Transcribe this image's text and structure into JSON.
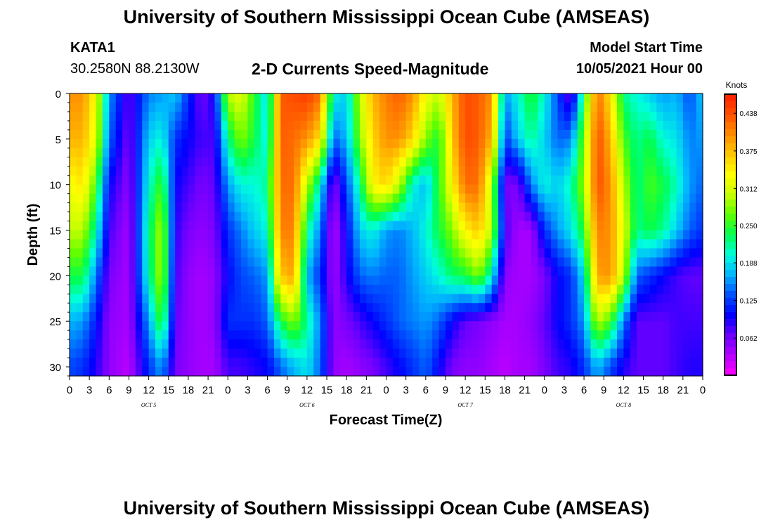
{
  "header": {
    "title": "University of Southern Mississippi Ocean Cube (AMSEAS)",
    "station_id": "KATA1",
    "station_coords": "30.2580N  88.2130W",
    "model_label": "Model Start Time",
    "model_start": "10/05/2021 Hour 00"
  },
  "footer": {
    "title": "University of Southern Mississippi Ocean Cube (AMSEAS)"
  },
  "colors": {
    "palette": [
      "#ff00ff",
      "#b300ff",
      "#6a00ff",
      "#0000ff",
      "#0050ff",
      "#00b4ff",
      "#00ffdc",
      "#00ff50",
      "#5fff00",
      "#c8ff00",
      "#ffff00",
      "#ffc800",
      "#ff8c00",
      "#ff5000",
      "#ff1e00"
    ]
  },
  "chart_data": {
    "type": "heatmap",
    "title": "2-D Currents Speed-Magnitude",
    "xlabel": "Forecast Time(Z)",
    "ylabel": "Depth (ft)",
    "units": "Knots",
    "ylim": [
      0,
      31
    ],
    "yticks": [
      0,
      5,
      10,
      15,
      20,
      25,
      30
    ],
    "xlim_hours": [
      0,
      96
    ],
    "xtick_labels": [
      "0",
      "3",
      "6",
      "9",
      "12",
      "15",
      "18",
      "21",
      "0",
      "3",
      "6",
      "9",
      "12",
      "15",
      "18",
      "21",
      "0",
      "3",
      "6",
      "9",
      "12",
      "15",
      "18",
      "21",
      "0",
      "3",
      "6",
      "9",
      "12",
      "15",
      "18",
      "21",
      "0"
    ],
    "day_labels": [
      {
        "label": "OCT 5",
        "hour": 12
      },
      {
        "label": "OCT 6",
        "hour": 36
      },
      {
        "label": "OCT 7",
        "hour": 60
      },
      {
        "label": "OCT 8",
        "hour": 84
      }
    ],
    "colorbar_ticks": [
      "0.438",
      "0.375",
      "0.312",
      "0.250",
      "0.188",
      "0.125",
      "0.062"
    ],
    "colorbar_range": [
      0,
      0.47
    ],
    "time_hours": [
      0,
      2,
      4,
      6,
      9,
      12,
      14,
      16,
      18,
      20,
      22,
      24,
      26,
      28,
      30,
      32,
      34,
      36,
      38,
      40,
      42,
      44,
      46,
      48,
      50,
      52,
      54,
      56,
      58,
      60,
      62,
      64,
      66,
      68,
      70,
      72,
      74,
      76,
      78,
      80,
      82,
      84,
      86,
      88,
      90,
      92,
      94,
      96
    ],
    "depth_ft": [
      0,
      5,
      10,
      15,
      20,
      25,
      30
    ],
    "speed_knots": [
      [
        0.4,
        0.4,
        0.33,
        0.16,
        0.07,
        0.15,
        0.16,
        0.18,
        0.12,
        0.06,
        0.1,
        0.3,
        0.32,
        0.25,
        0.18,
        0.43,
        0.44,
        0.45,
        0.42,
        0.2,
        0.18,
        0.3,
        0.38,
        0.41,
        0.43,
        0.4,
        0.33,
        0.3,
        0.38,
        0.44,
        0.43,
        0.4,
        0.16,
        0.2,
        0.25,
        0.2,
        0.13,
        0.06,
        0.24,
        0.42,
        0.35,
        0.22,
        0.2,
        0.18,
        0.16,
        0.17,
        0.13,
        0.18
      ],
      [
        0.38,
        0.38,
        0.32,
        0.14,
        0.06,
        0.18,
        0.2,
        0.12,
        0.1,
        0.08,
        0.08,
        0.22,
        0.28,
        0.24,
        0.19,
        0.43,
        0.42,
        0.4,
        0.35,
        0.14,
        0.17,
        0.28,
        0.36,
        0.4,
        0.4,
        0.36,
        0.28,
        0.24,
        0.37,
        0.44,
        0.43,
        0.38,
        0.12,
        0.18,
        0.22,
        0.18,
        0.14,
        0.15,
        0.28,
        0.44,
        0.38,
        0.26,
        0.22,
        0.24,
        0.2,
        0.19,
        0.15,
        0.16
      ],
      [
        0.33,
        0.35,
        0.26,
        0.1,
        0.05,
        0.2,
        0.26,
        0.1,
        0.08,
        0.06,
        0.07,
        0.16,
        0.2,
        0.2,
        0.22,
        0.42,
        0.42,
        0.3,
        0.2,
        0.05,
        0.13,
        0.22,
        0.34,
        0.36,
        0.3,
        0.2,
        0.17,
        0.25,
        0.34,
        0.42,
        0.42,
        0.3,
        0.06,
        0.06,
        0.15,
        0.2,
        0.18,
        0.21,
        0.29,
        0.44,
        0.4,
        0.3,
        0.22,
        0.26,
        0.24,
        0.21,
        0.16,
        0.14
      ],
      [
        0.3,
        0.3,
        0.21,
        0.08,
        0.04,
        0.22,
        0.3,
        0.09,
        0.06,
        0.05,
        0.06,
        0.12,
        0.15,
        0.18,
        0.2,
        0.41,
        0.41,
        0.22,
        0.15,
        0.03,
        0.1,
        0.18,
        0.2,
        0.16,
        0.15,
        0.17,
        0.2,
        0.24,
        0.28,
        0.34,
        0.37,
        0.3,
        0.08,
        0.04,
        0.04,
        0.12,
        0.16,
        0.19,
        0.25,
        0.41,
        0.4,
        0.32,
        0.22,
        0.24,
        0.22,
        0.18,
        0.14,
        0.12
      ],
      [
        0.24,
        0.24,
        0.15,
        0.06,
        0.04,
        0.21,
        0.3,
        0.08,
        0.05,
        0.04,
        0.05,
        0.1,
        0.13,
        0.14,
        0.16,
        0.37,
        0.39,
        0.17,
        0.12,
        0.04,
        0.09,
        0.14,
        0.15,
        0.14,
        0.14,
        0.16,
        0.18,
        0.2,
        0.23,
        0.24,
        0.28,
        0.2,
        0.05,
        0.04,
        0.04,
        0.06,
        0.1,
        0.12,
        0.19,
        0.39,
        0.4,
        0.3,
        0.14,
        0.12,
        0.1,
        0.08,
        0.07,
        0.07
      ],
      [
        0.17,
        0.16,
        0.11,
        0.05,
        0.04,
        0.16,
        0.26,
        0.07,
        0.05,
        0.04,
        0.05,
        0.12,
        0.12,
        0.12,
        0.14,
        0.24,
        0.28,
        0.22,
        0.15,
        0.05,
        0.06,
        0.08,
        0.1,
        0.12,
        0.14,
        0.15,
        0.16,
        0.14,
        0.1,
        0.07,
        0.06,
        0.05,
        0.04,
        0.04,
        0.05,
        0.07,
        0.1,
        0.12,
        0.16,
        0.3,
        0.26,
        0.15,
        0.07,
        0.07,
        0.07,
        0.08,
        0.08,
        0.08
      ],
      [
        0.13,
        0.12,
        0.09,
        0.05,
        0.03,
        0.12,
        0.16,
        0.06,
        0.05,
        0.04,
        0.04,
        0.08,
        0.08,
        0.09,
        0.1,
        0.14,
        0.17,
        0.19,
        0.14,
        0.05,
        0.04,
        0.05,
        0.06,
        0.08,
        0.1,
        0.12,
        0.14,
        0.1,
        0.06,
        0.05,
        0.05,
        0.04,
        0.03,
        0.04,
        0.04,
        0.06,
        0.08,
        0.09,
        0.12,
        0.17,
        0.13,
        0.09,
        0.07,
        0.07,
        0.07,
        0.08,
        0.09,
        0.09
      ]
    ]
  }
}
